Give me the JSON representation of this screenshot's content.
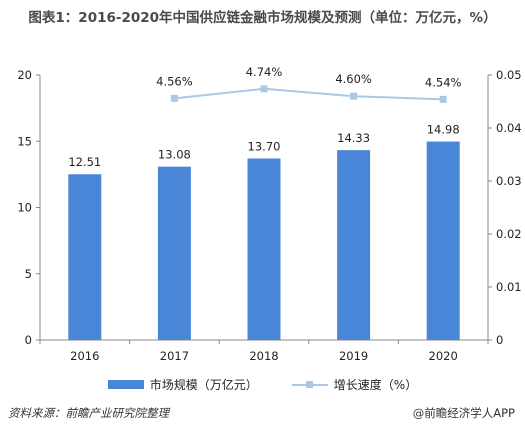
{
  "title": "图表1：2016-2020年中国供应链金融市场规模及预测（单位：万亿元，%）",
  "chart_data": {
    "type": "bar",
    "title": "图表1：2016-2020年中国供应链金融市场规模及预测（单位：万亿元，%）",
    "categories": [
      "2016",
      "2017",
      "2018",
      "2019",
      "2020"
    ],
    "series": [
      {
        "name": "市场规模（万亿元）",
        "type": "bar",
        "axis": "left",
        "values": [
          12.51,
          13.08,
          13.7,
          14.33,
          14.98
        ],
        "labels": [
          "12.51",
          "13.08",
          "13.70",
          "14.33",
          "14.98"
        ],
        "color": "#4a86d8"
      },
      {
        "name": "增长速度（%）",
        "type": "line",
        "axis": "right",
        "values": [
          null,
          0.0456,
          0.0474,
          0.046,
          0.0454
        ],
        "labels": [
          "",
          "4.56%",
          "4.74%",
          "4.60%",
          "4.54%"
        ],
        "color": "#a9c8e6"
      }
    ],
    "y_left": {
      "ylim": [
        0,
        20
      ],
      "ticks": [
        "0",
        "5",
        "10",
        "15",
        "20"
      ]
    },
    "y_right": {
      "ylim": [
        0,
        0.05
      ],
      "ticks": [
        "0",
        "0.01",
        "0.02",
        "0.03",
        "0.04",
        "0.05"
      ]
    },
    "grid": false,
    "legend": "bottom"
  },
  "legend": {
    "bar_label": "市场规模（万亿元）",
    "line_label": "增长速度（%）"
  },
  "footer": {
    "source": "资料来源：前瞻产业研究院整理",
    "brand": "@前瞻经济学人APP"
  }
}
